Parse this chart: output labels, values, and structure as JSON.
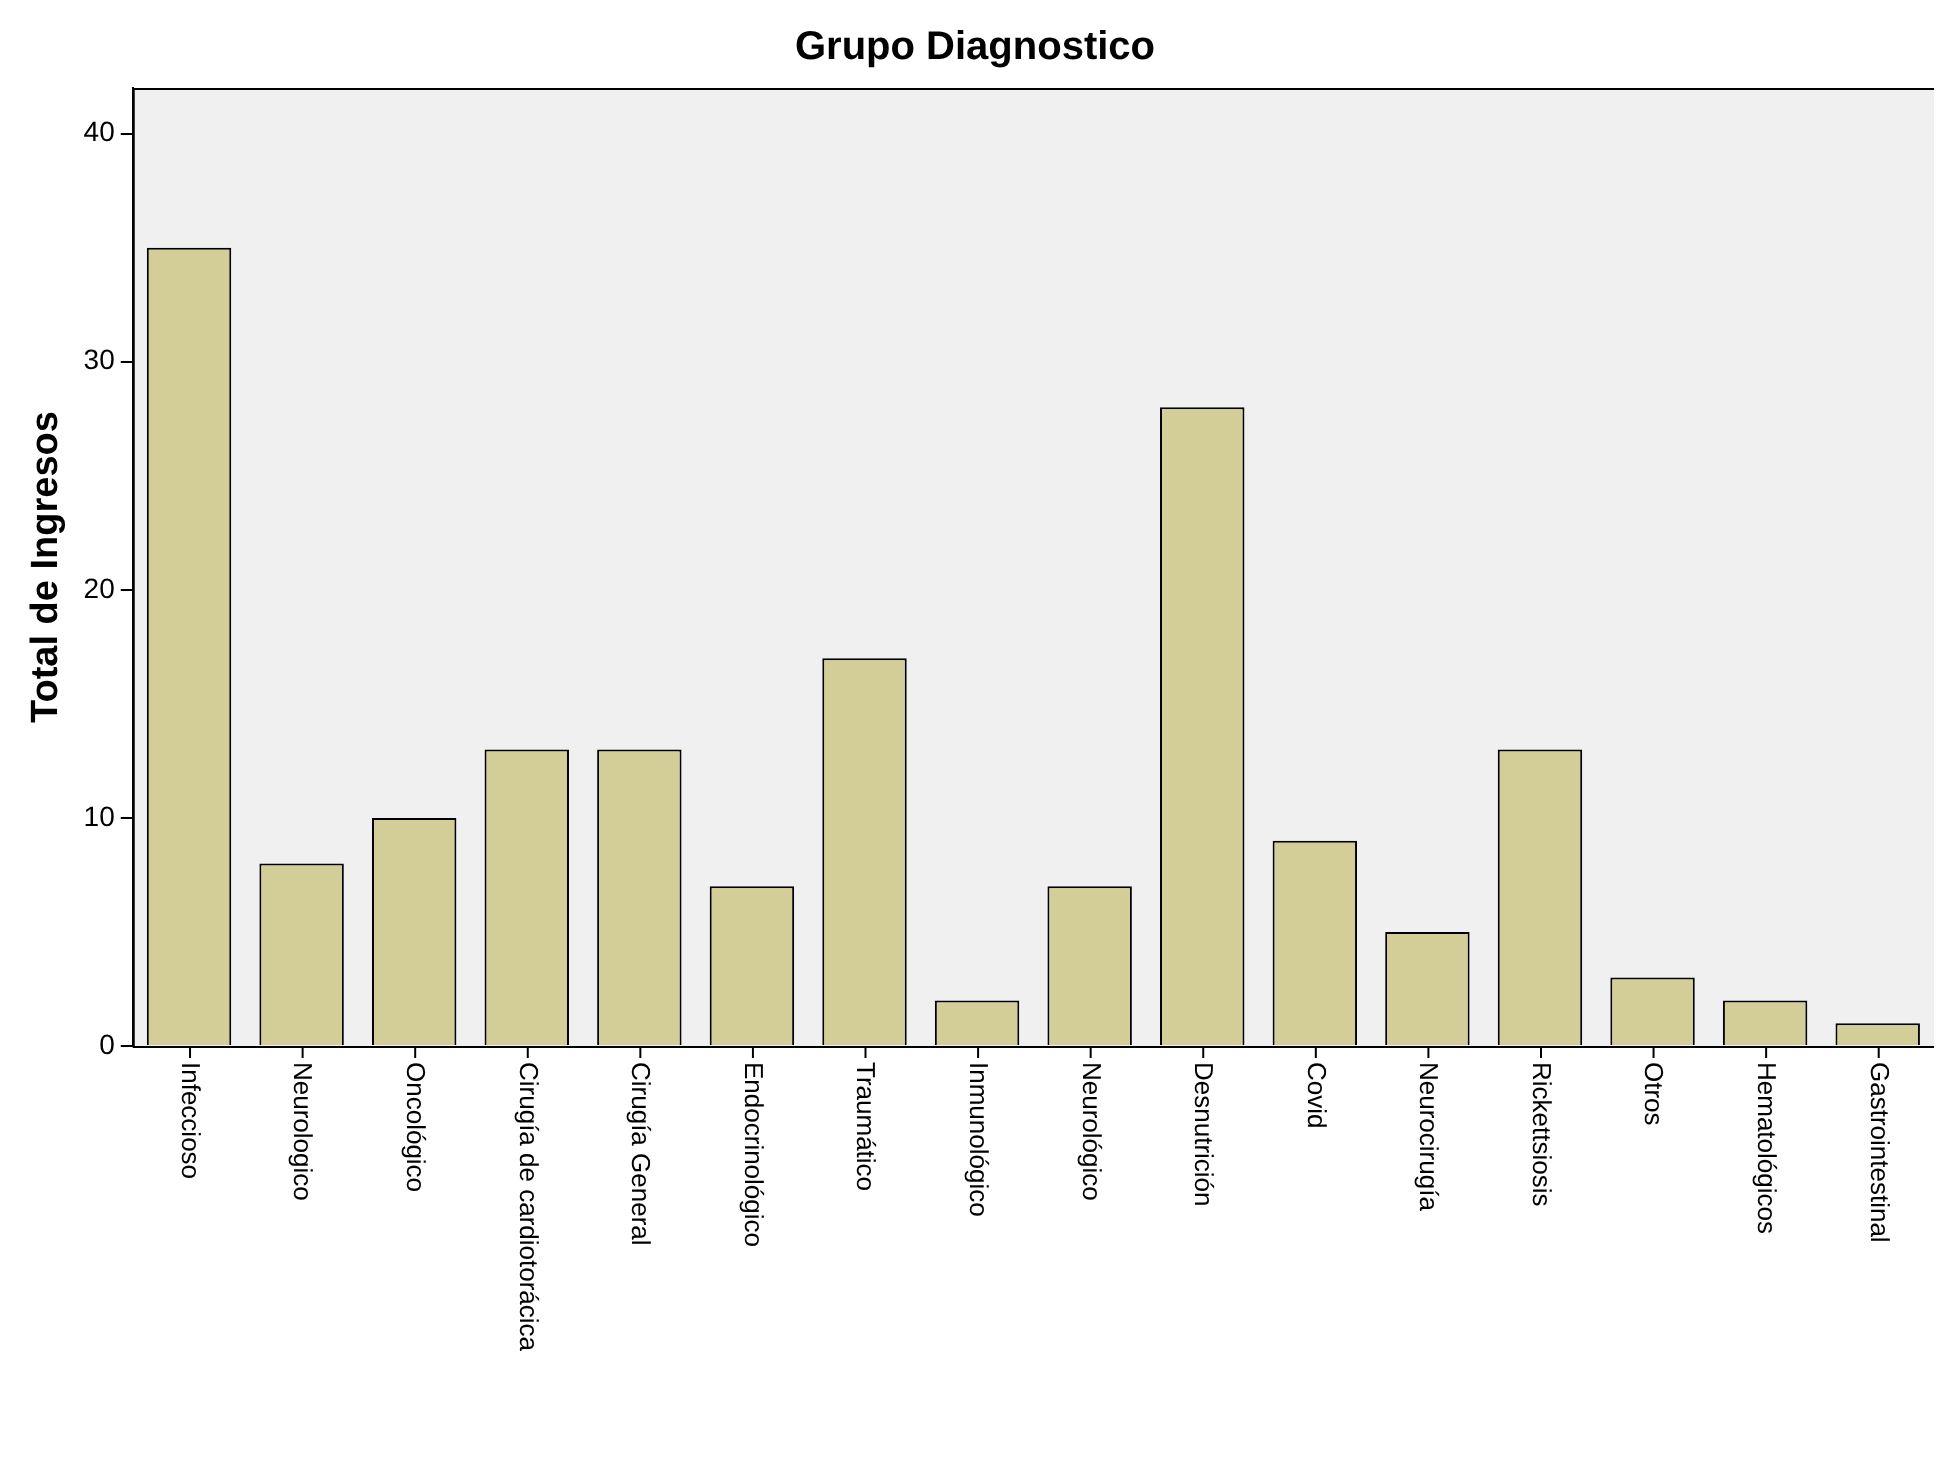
{
  "chart_data": {
    "type": "bar",
    "title": "Grupo Diagnostico",
    "ylabel": "Total de Ingresos",
    "categories": [
      "Infeccioso",
      "Neurologico",
      "Oncológico",
      "Cirugía de cardiotorácica",
      "Cirugía General",
      "Endocrinológico",
      "Traumático",
      "Inmunológico",
      "Neurológico",
      "Desnutrición",
      "Covid",
      "Neurocirugía",
      "Rickettsiosis",
      "Otros",
      "Hematológicos",
      "Gastrointestinal"
    ],
    "values": [
      35,
      8,
      10,
      13,
      13,
      7,
      17,
      2,
      7,
      28,
      9,
      5,
      13,
      3,
      2,
      1
    ],
    "color": "#d3ce97",
    "ylim": [
      0,
      42
    ],
    "yticks": [
      0,
      10,
      20,
      30,
      40
    ],
    "grid": false,
    "legend": false
  }
}
